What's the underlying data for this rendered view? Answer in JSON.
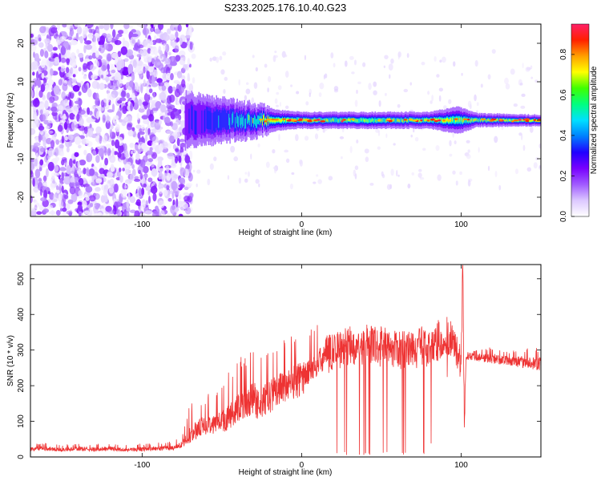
{
  "figure": {
    "title": "S233.2025.176.10.40.G23"
  },
  "chart_data": [
    {
      "type": "heatmap",
      "xlabel": "Height of straight line (km)",
      "ylabel": "Frequency (Hz)",
      "xlim": [
        -170,
        150
      ],
      "ylim": [
        -25,
        25
      ],
      "xticks": [
        -100,
        0,
        100
      ],
      "yticks": [
        -20,
        -10,
        0,
        10,
        20
      ],
      "colorbar": {
        "label": "Normalized spectral amplitude",
        "range": [
          0,
          0.95
        ],
        "ticks": [
          0.0,
          0.2,
          0.4,
          0.6,
          0.8
        ],
        "tick_labels": [
          "0.0",
          "0.2",
          "0.4",
          "0.6",
          "0.8"
        ],
        "colormap": [
          "#ffffff",
          "#dcc8ff",
          "#a05aff",
          "#7800ff",
          "#2000ff",
          "#0080ff",
          "#00e0ff",
          "#00ff80",
          "#40ff00",
          "#ffff00",
          "#ffa000",
          "#ff2000",
          "#ff2068"
        ]
      },
      "noise_region_x": [
        -170,
        -73
      ],
      "ridge_frequency_hz": 0,
      "ridge_profile": [
        {
          "x": -73,
          "amp": 0.25,
          "spread": 4.0
        },
        {
          "x": -60,
          "amp": 0.3,
          "spread": 3.5
        },
        {
          "x": -45,
          "amp": 0.4,
          "spread": 3.0
        },
        {
          "x": -30,
          "amp": 0.55,
          "spread": 2.5
        },
        {
          "x": -15,
          "amp": 0.75,
          "spread": 1.5
        },
        {
          "x": 0,
          "amp": 0.7,
          "spread": 1.2
        },
        {
          "x": 20,
          "amp": 0.6,
          "spread": 1.2
        },
        {
          "x": 40,
          "amp": 0.6,
          "spread": 1.2
        },
        {
          "x": 60,
          "amp": 0.7,
          "spread": 1.2
        },
        {
          "x": 80,
          "amp": 0.75,
          "spread": 1.2
        },
        {
          "x": 98,
          "amp": 0.6,
          "spread": 2.0
        },
        {
          "x": 110,
          "amp": 0.65,
          "spread": 1.0
        },
        {
          "x": 130,
          "amp": 0.7,
          "spread": 0.9
        },
        {
          "x": 150,
          "amp": 0.9,
          "spread": 0.8
        }
      ],
      "grid": false
    },
    {
      "type": "line",
      "xlabel": "Height of straight line (km)",
      "ylabel": "SNR (10 * v/v)",
      "xlim": [
        -170,
        150
      ],
      "ylim": [
        0,
        540
      ],
      "xticks": [
        -100,
        0,
        100
      ],
      "yticks": [
        0,
        100,
        200,
        300,
        400,
        500
      ],
      "color": "#ee3333",
      "grid": false,
      "series": [
        {
          "x": [
            -170,
            -160,
            -150,
            -140,
            -130,
            -120,
            -110,
            -100,
            -90,
            -80,
            -75,
            -70,
            -65,
            -60,
            -55,
            -50,
            -45,
            -40,
            -35,
            -30,
            -25,
            -20,
            -15,
            -10,
            -5,
            0,
            5,
            10,
            15,
            20,
            25,
            30,
            40,
            50,
            60,
            70,
            80,
            90,
            95,
            98,
            100,
            101,
            102,
            103,
            105,
            110,
            120,
            130,
            140,
            150
          ],
          "values": [
            22,
            24,
            20,
            23,
            21,
            24,
            20,
            22,
            24,
            25,
            35,
            60,
            80,
            90,
            95,
            100,
            115,
            130,
            150,
            160,
            150,
            170,
            190,
            200,
            210,
            220,
            240,
            260,
            285,
            300,
            305,
            315,
            315,
            310,
            300,
            305,
            310,
            315,
            320,
            290,
            250,
            540,
            80,
            280,
            285,
            280,
            275,
            270,
            265,
            260
          ],
          "envelope_upper": [
            38,
            40,
            36,
            38,
            38,
            40,
            36,
            38,
            40,
            45,
            60,
            150,
            160,
            175,
            190,
            200,
            250,
            300,
            280,
            320,
            290,
            340,
            330,
            350,
            340,
            330,
            360,
            380,
            320,
            320,
            330,
            330,
            330,
            330,
            330,
            330,
            350,
            420,
            370,
            330,
            330,
            540,
            330,
            310,
            300,
            300,
            310,
            300,
            305,
            310
          ],
          "envelope_lower": [
            5,
            5,
            5,
            5,
            5,
            5,
            5,
            5,
            5,
            8,
            10,
            15,
            20,
            20,
            20,
            30,
            30,
            40,
            50,
            20,
            40,
            60,
            80,
            100,
            60,
            15,
            180,
            200,
            5,
            5,
            5,
            5,
            5,
            5,
            5,
            5,
            5,
            250,
            150,
            60,
            80,
            300,
            50,
            240,
            240,
            240,
            230,
            230,
            210,
            200
          ]
        }
      ]
    }
  ]
}
